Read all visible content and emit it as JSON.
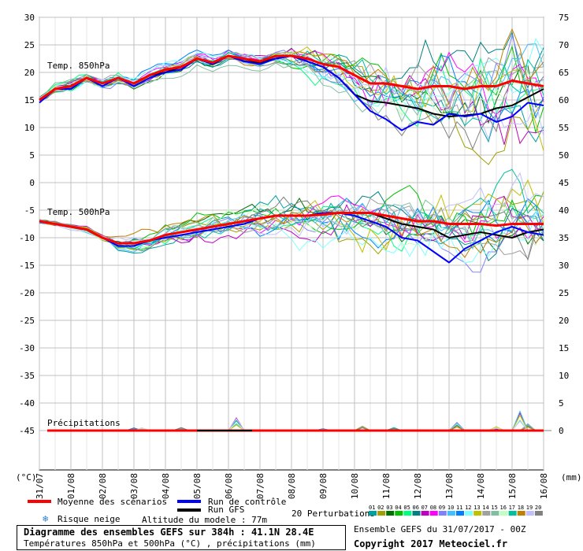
{
  "chart_data": {
    "type": "line",
    "dates": [
      "31/07",
      "01/08",
      "02/08",
      "03/08",
      "04/08",
      "05/08",
      "06/08",
      "07/08",
      "08/08",
      "09/08",
      "10/08",
      "11/08",
      "12/08",
      "13/08",
      "14/08",
      "15/08",
      "16/08"
    ],
    "left_axis_unit": "(°C)",
    "right_axis_unit": "(mm)",
    "left_ticks": [
      30,
      25,
      20,
      15,
      10,
      5,
      0,
      -5,
      -10,
      -15,
      -20,
      -25,
      -30,
      -35,
      -40,
      -45
    ],
    "right_ticks": [
      75,
      70,
      65,
      60,
      55,
      50,
      45,
      40,
      35,
      30,
      25,
      20,
      15,
      10,
      5,
      0
    ],
    "panels": [
      {
        "label": "Temp. 850hPa",
        "mean": [
          [
            0,
            15.0
          ],
          [
            1,
            17.0
          ],
          [
            2,
            17.5
          ],
          [
            3,
            19.0
          ],
          [
            4,
            18.0
          ],
          [
            5,
            19.0
          ],
          [
            6,
            18.0
          ],
          [
            7,
            19.5
          ],
          [
            8,
            20.5
          ],
          [
            9,
            21.0
          ],
          [
            10,
            22.5
          ],
          [
            11,
            21.8
          ],
          [
            12,
            23.0
          ],
          [
            13,
            22.5
          ],
          [
            14,
            22.0
          ],
          [
            15,
            23.0
          ],
          [
            16,
            23.0
          ],
          [
            17,
            22.5
          ],
          [
            18,
            21.5
          ],
          [
            19,
            21.0
          ],
          [
            20,
            19.5
          ],
          [
            21,
            18.0
          ],
          [
            22,
            18.0
          ],
          [
            23,
            17.5
          ],
          [
            24,
            17.0
          ],
          [
            25,
            17.5
          ],
          [
            26,
            17.5
          ],
          [
            27,
            17.0
          ],
          [
            28,
            17.5
          ],
          [
            29,
            17.5
          ],
          [
            30,
            18.5
          ],
          [
            31,
            18.0
          ],
          [
            32,
            17.5
          ]
        ],
        "control": [
          [
            0,
            14.5
          ],
          [
            1,
            17.0
          ],
          [
            2,
            17.0
          ],
          [
            3,
            19.0
          ],
          [
            4,
            17.5
          ],
          [
            5,
            19.0
          ],
          [
            6,
            17.5
          ],
          [
            7,
            19.0
          ],
          [
            8,
            20.0
          ],
          [
            9,
            20.5
          ],
          [
            10,
            22.5
          ],
          [
            11,
            21.5
          ],
          [
            12,
            23.0
          ],
          [
            13,
            22.0
          ],
          [
            14,
            21.5
          ],
          [
            15,
            22.5
          ],
          [
            16,
            23.0
          ],
          [
            17,
            22.0
          ],
          [
            18,
            21.0
          ],
          [
            19,
            19.0
          ],
          [
            20,
            16.0
          ],
          [
            21,
            13.0
          ],
          [
            22,
            11.5
          ],
          [
            23,
            9.5
          ],
          [
            24,
            11.0
          ],
          [
            25,
            10.5
          ],
          [
            26,
            12.5
          ],
          [
            27,
            12.0
          ],
          [
            28,
            12.5
          ],
          [
            29,
            11.0
          ],
          [
            30,
            12.0
          ],
          [
            31,
            14.5
          ],
          [
            32,
            14.0
          ]
        ],
        "gfs": [
          [
            0,
            15.0
          ],
          [
            1,
            17.0
          ],
          [
            2,
            17.5
          ],
          [
            3,
            19.0
          ],
          [
            4,
            18.0
          ],
          [
            5,
            19.0
          ],
          [
            6,
            18.0
          ],
          [
            7,
            19.5
          ],
          [
            8,
            20.0
          ],
          [
            9,
            21.0
          ],
          [
            10,
            22.5
          ],
          [
            11,
            21.5
          ],
          [
            12,
            23.0
          ],
          [
            13,
            22.0
          ],
          [
            14,
            21.8
          ],
          [
            15,
            22.5
          ],
          [
            16,
            23.0
          ],
          [
            17,
            22.0
          ],
          [
            18,
            21.0
          ],
          [
            19,
            19.0
          ],
          [
            20,
            16.0
          ],
          [
            21,
            14.8
          ],
          [
            22,
            14.5
          ],
          [
            23,
            14.0
          ],
          [
            24,
            13.5
          ],
          [
            25,
            12.5
          ],
          [
            26,
            12.0
          ],
          [
            27,
            12.2
          ],
          [
            28,
            12.5
          ],
          [
            29,
            13.5
          ],
          [
            30,
            14.0
          ],
          [
            31,
            15.5
          ],
          [
            32,
            17.0
          ]
        ]
      },
      {
        "label": "Temp. 500hPa",
        "mean": [
          [
            0,
            -7.0
          ],
          [
            2,
            -7.5
          ],
          [
            4,
            -8.0
          ],
          [
            6,
            -8.5
          ],
          [
            8,
            -10.0
          ],
          [
            10,
            -11.0
          ],
          [
            12,
            -11.0
          ],
          [
            14,
            -10.5
          ],
          [
            16,
            -9.5
          ],
          [
            18,
            -9.0
          ],
          [
            20,
            -8.5
          ],
          [
            22,
            -8.0
          ],
          [
            24,
            -7.5
          ],
          [
            26,
            -7.0
          ],
          [
            28,
            -6.5
          ],
          [
            30,
            -6.0
          ],
          [
            32,
            -6.0
          ],
          [
            34,
            -6.0
          ],
          [
            36,
            -5.8
          ],
          [
            38,
            -5.5
          ],
          [
            40,
            -5.5
          ],
          [
            42,
            -5.5
          ],
          [
            44,
            -6.0
          ],
          [
            46,
            -6.5
          ],
          [
            48,
            -7.0
          ],
          [
            50,
            -7.0
          ],
          [
            52,
            -7.5
          ],
          [
            54,
            -7.5
          ],
          [
            56,
            -7.5
          ],
          [
            58,
            -7.8
          ],
          [
            60,
            -7.5
          ],
          [
            62,
            -7.5
          ],
          [
            64,
            -7.5
          ]
        ],
        "control": [
          [
            0,
            -7.0
          ],
          [
            2,
            -7.5
          ],
          [
            4,
            -8.0
          ],
          [
            6,
            -8.5
          ],
          [
            8,
            -10.0
          ],
          [
            10,
            -11.5
          ],
          [
            12,
            -11.5
          ],
          [
            14,
            -10.5
          ],
          [
            16,
            -10.0
          ],
          [
            18,
            -9.5
          ],
          [
            20,
            -9.0
          ],
          [
            22,
            -8.5
          ],
          [
            24,
            -8.0
          ],
          [
            26,
            -7.5
          ],
          [
            28,
            -6.5
          ],
          [
            30,
            -6.0
          ],
          [
            32,
            -6.0
          ],
          [
            34,
            -6.0
          ],
          [
            36,
            -5.5
          ],
          [
            38,
            -5.5
          ],
          [
            40,
            -6.0
          ],
          [
            42,
            -7.0
          ],
          [
            44,
            -8.0
          ],
          [
            46,
            -10.0
          ],
          [
            48,
            -10.5
          ],
          [
            50,
            -12.5
          ],
          [
            52,
            -14.5
          ],
          [
            54,
            -12.0
          ],
          [
            56,
            -10.5
          ],
          [
            58,
            -9.0
          ],
          [
            60,
            -8.0
          ],
          [
            62,
            -9.0
          ],
          [
            64,
            -9.5
          ]
        ],
        "gfs": [
          [
            0,
            -7.0
          ],
          [
            2,
            -7.5
          ],
          [
            4,
            -8.0
          ],
          [
            6,
            -8.5
          ],
          [
            8,
            -10.0
          ],
          [
            10,
            -11.0
          ],
          [
            12,
            -11.0
          ],
          [
            14,
            -10.5
          ],
          [
            16,
            -9.5
          ],
          [
            18,
            -9.0
          ],
          [
            20,
            -8.5
          ],
          [
            22,
            -8.0
          ],
          [
            24,
            -7.5
          ],
          [
            26,
            -7.0
          ],
          [
            28,
            -6.5
          ],
          [
            30,
            -6.0
          ],
          [
            32,
            -6.0
          ],
          [
            34,
            -6.0
          ],
          [
            36,
            -5.5
          ],
          [
            38,
            -5.5
          ],
          [
            40,
            -5.5
          ],
          [
            42,
            -5.5
          ],
          [
            44,
            -6.5
          ],
          [
            46,
            -7.5
          ],
          [
            48,
            -8.0
          ],
          [
            50,
            -8.5
          ],
          [
            52,
            -10.0
          ],
          [
            54,
            -9.5
          ],
          [
            56,
            -9.0
          ],
          [
            58,
            -9.5
          ],
          [
            60,
            -10.0
          ],
          [
            62,
            -9.0
          ],
          [
            64,
            -8.5
          ]
        ]
      },
      {
        "label": "Précipitations",
        "mean_mm": 0.0,
        "spikes_mm": [
          [
            16,
            0.5
          ],
          [
            18,
            0.5
          ],
          [
            26,
            0.5
          ],
          [
            36,
            2.0
          ],
          [
            52,
            0.3
          ],
          [
            60,
            0.8
          ],
          [
            66,
            0.5
          ],
          [
            78,
            1.5
          ],
          [
            86,
            0.6
          ],
          [
            90,
            3.0
          ],
          [
            92,
            1.2
          ],
          [
            98,
            0.3
          ]
        ]
      }
    ],
    "member_colors": [
      "#00a0a0",
      "#a0a000",
      "#007000",
      "#00c000",
      "#00ff80",
      "#008080",
      "#c000c0",
      "#ff00ff",
      "#8080ff",
      "#40c0ff",
      "#0080ff",
      "#80ffff",
      "#c0c000",
      "#a0a0a0",
      "#80c0a0",
      "#c0ffc0",
      "#00c0a0",
      "#c08000",
      "#c0c0ff",
      "#808080"
    ],
    "colors": {
      "mean": "#ff0000",
      "control": "#0000ff",
      "gfs": "#000000",
      "grid": "#c0c0c0"
    }
  },
  "legend": {
    "mean_label": "Moyenne des scénarios",
    "control_label": "Run de contrôle",
    "gfs_label": "Run GFS",
    "snow_label": "Risque neige",
    "altitude_label": "Altitude du modele : 77m",
    "perturbations_label": "20 Perturbations",
    "perturbation_ids": [
      "01",
      "02",
      "03",
      "04",
      "05",
      "06",
      "07",
      "08",
      "09",
      "10",
      "11",
      "12",
      "13",
      "14",
      "15",
      "16",
      "17",
      "18",
      "19",
      "20"
    ]
  },
  "footer": {
    "title": "Diagramme des ensembles GEFS sur 384h : 41.1N 28.4E",
    "subtitle": "Températures 850hPa et 500hPa (°C) , précipitations (mm)",
    "run": "Ensemble GEFS du 31/07/2017 - 00Z",
    "copyright": "Copyright 2017 Meteociel.fr"
  }
}
